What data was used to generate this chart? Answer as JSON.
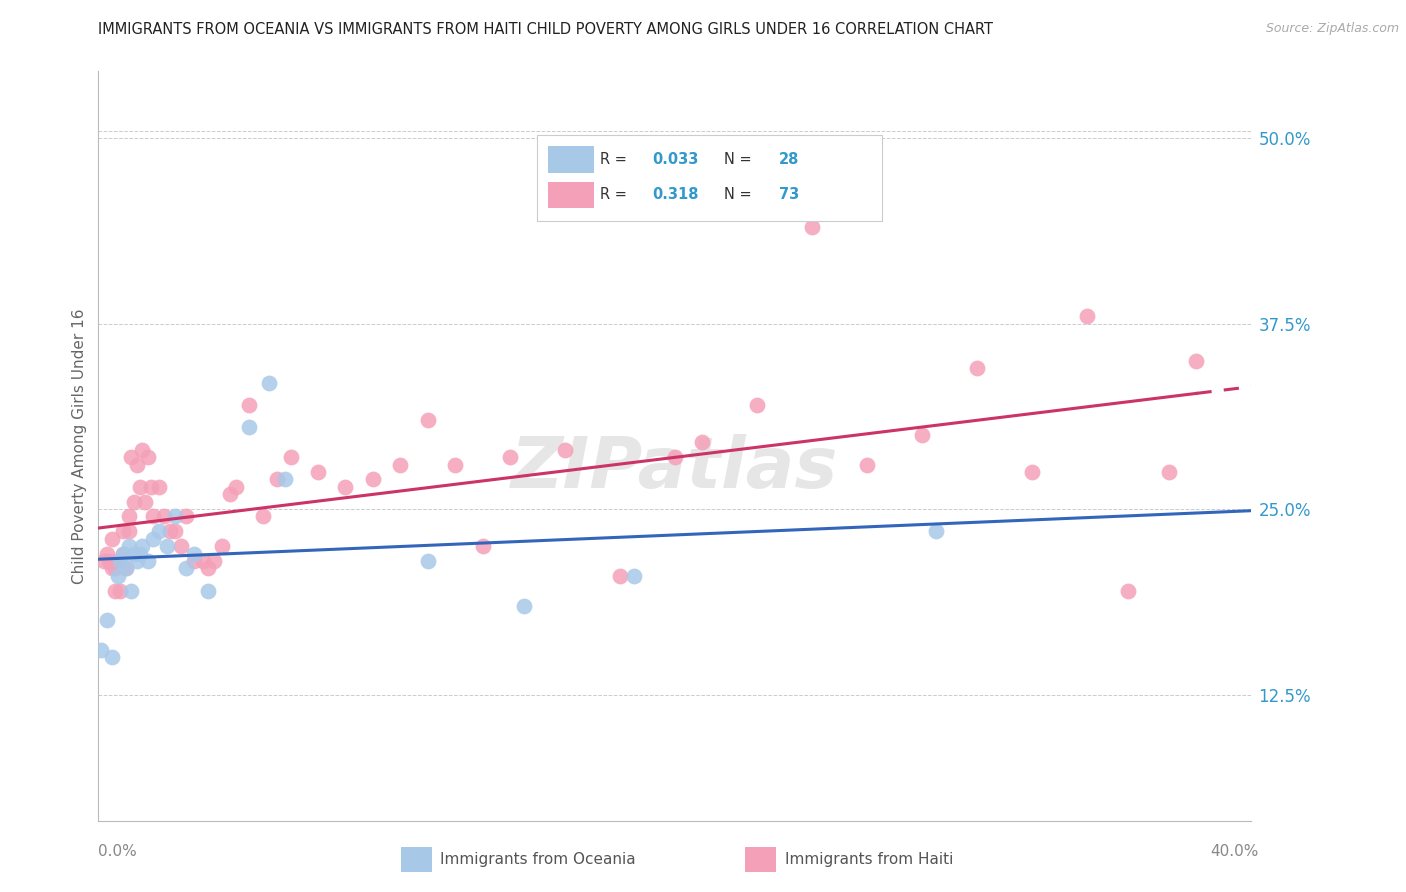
{
  "title": "IMMIGRANTS FROM OCEANIA VS IMMIGRANTS FROM HAITI CHILD POVERTY AMONG GIRLS UNDER 16 CORRELATION CHART",
  "source": "Source: ZipAtlas.com",
  "ylabel": "Child Poverty Among Girls Under 16",
  "y_ticks": [
    0.125,
    0.25,
    0.375,
    0.5
  ],
  "y_tick_labels": [
    "12.5%",
    "25.0%",
    "37.5%",
    "50.0%"
  ],
  "xlim": [
    0.0,
    0.42
  ],
  "ylim": [
    0.04,
    0.545
  ],
  "color_oceania": "#a8c8e8",
  "color_haiti": "#f4a0b8",
  "color_line_oceania": "#3366bb",
  "color_line_haiti": "#cc3366",
  "color_text_blue": "#3399cc",
  "watermark": "ZIPatlas",
  "oceania_x": [
    0.001,
    0.003,
    0.005,
    0.007,
    0.008,
    0.009,
    0.01,
    0.011,
    0.012,
    0.013,
    0.014,
    0.015,
    0.016,
    0.018,
    0.02,
    0.022,
    0.025,
    0.028,
    0.032,
    0.035,
    0.04,
    0.055,
    0.062,
    0.068,
    0.12,
    0.155,
    0.195,
    0.305
  ],
  "oceania_y": [
    0.155,
    0.175,
    0.15,
    0.205,
    0.215,
    0.22,
    0.21,
    0.225,
    0.195,
    0.22,
    0.215,
    0.22,
    0.225,
    0.215,
    0.23,
    0.235,
    0.225,
    0.245,
    0.21,
    0.22,
    0.195,
    0.305,
    0.335,
    0.27,
    0.215,
    0.185,
    0.205,
    0.235
  ],
  "haiti_x": [
    0.002,
    0.003,
    0.004,
    0.005,
    0.005,
    0.006,
    0.006,
    0.007,
    0.008,
    0.008,
    0.009,
    0.009,
    0.01,
    0.011,
    0.011,
    0.012,
    0.013,
    0.014,
    0.015,
    0.016,
    0.017,
    0.018,
    0.019,
    0.02,
    0.022,
    0.024,
    0.026,
    0.028,
    0.03,
    0.032,
    0.035,
    0.038,
    0.04,
    0.042,
    0.045,
    0.048,
    0.05,
    0.055,
    0.06,
    0.065,
    0.07,
    0.08,
    0.09,
    0.1,
    0.11,
    0.12,
    0.13,
    0.14,
    0.15,
    0.17,
    0.19,
    0.21,
    0.22,
    0.24,
    0.26,
    0.28,
    0.3,
    0.32,
    0.34,
    0.36,
    0.375,
    0.39,
    0.4
  ],
  "haiti_y": [
    0.215,
    0.22,
    0.215,
    0.21,
    0.23,
    0.195,
    0.21,
    0.215,
    0.195,
    0.215,
    0.22,
    0.235,
    0.21,
    0.235,
    0.245,
    0.285,
    0.255,
    0.28,
    0.265,
    0.29,
    0.255,
    0.285,
    0.265,
    0.245,
    0.265,
    0.245,
    0.235,
    0.235,
    0.225,
    0.245,
    0.215,
    0.215,
    0.21,
    0.215,
    0.225,
    0.26,
    0.265,
    0.32,
    0.245,
    0.27,
    0.285,
    0.275,
    0.265,
    0.27,
    0.28,
    0.31,
    0.28,
    0.225,
    0.285,
    0.29,
    0.205,
    0.285,
    0.295,
    0.32,
    0.44,
    0.28,
    0.3,
    0.345,
    0.275,
    0.38,
    0.195,
    0.275,
    0.35
  ]
}
